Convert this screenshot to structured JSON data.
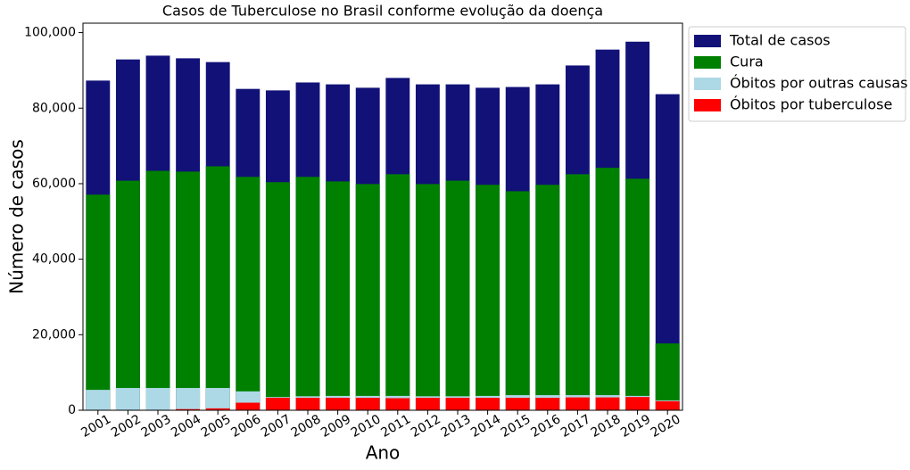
{
  "chart_data": {
    "type": "overlap-bar",
    "title": "Casos de Tuberculose no Brasil conforme evolução da doença",
    "x_label": "Ano",
    "y_label": "Número de casos",
    "categories": [
      "2001",
      "2002",
      "2003",
      "2004",
      "2005",
      "2006",
      "2007",
      "2008",
      "2009",
      "2010",
      "2011",
      "2012",
      "2013",
      "2014",
      "2015",
      "2016",
      "2017",
      "2018",
      "2019",
      "2020"
    ],
    "series": [
      {
        "name": "Total de casos",
        "color": "#111178",
        "values": [
          87300,
          92900,
          93900,
          93200,
          92200,
          85100,
          84700,
          86800,
          86300,
          85400,
          88000,
          86300,
          86300,
          85400,
          85600,
          86300,
          91300,
          95500,
          97600,
          83700
        ]
      },
      {
        "name": "Cura",
        "color": "#008000",
        "values": [
          57100,
          60800,
          63400,
          63200,
          64600,
          61800,
          60400,
          61800,
          60600,
          59900,
          62500,
          59900,
          60800,
          59700,
          58000,
          59700,
          62500,
          64200,
          61300,
          17700
        ]
      },
      {
        "name": "Óbitos por outras causas",
        "color": "#add8e6",
        "values": [
          5400,
          5900,
          5900,
          5900,
          5900,
          5000,
          3500,
          3700,
          3800,
          3800,
          3800,
          3700,
          3700,
          3800,
          4000,
          4000,
          4000,
          4000,
          3800,
          2600
        ]
      },
      {
        "name": "Óbitos por tuberculose",
        "color": "#ff0000",
        "values": [
          100,
          100,
          100,
          300,
          500,
          2000,
          3300,
          3300,
          3300,
          3300,
          3200,
          3300,
          3300,
          3300,
          3300,
          3300,
          3400,
          3400,
          3500,
          2400
        ]
      }
    ],
    "ylim": [
      0,
      102500
    ],
    "yticks": [
      0,
      {
        "value": 20000,
        "label": "20,000"
      },
      {
        "value": 40000,
        "label": "40,000"
      },
      {
        "value": 60000,
        "label": "60,000"
      },
      {
        "value": 80000,
        "label": "80,000"
      },
      {
        "value": 100000,
        "label": "100,000"
      }
    ],
    "legend": "outside-upper-right"
  }
}
